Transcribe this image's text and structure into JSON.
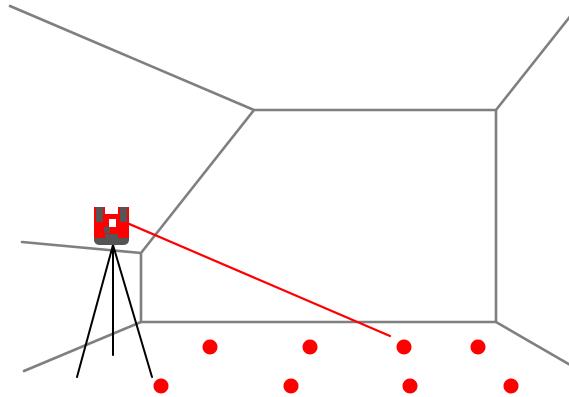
{
  "diagram": {
    "subject": "laser-scanner-on-tripod-in-room",
    "colors": {
      "background": "#ffffff",
      "room_lines": "#7f7f7f",
      "tripod": "#000000",
      "scanner_body": "#555555",
      "laser": "#ff0000",
      "points": "#ff0000"
    },
    "point_count": 8,
    "icons": [
      "laser-scanner-icon",
      "tripod-icon"
    ]
  }
}
